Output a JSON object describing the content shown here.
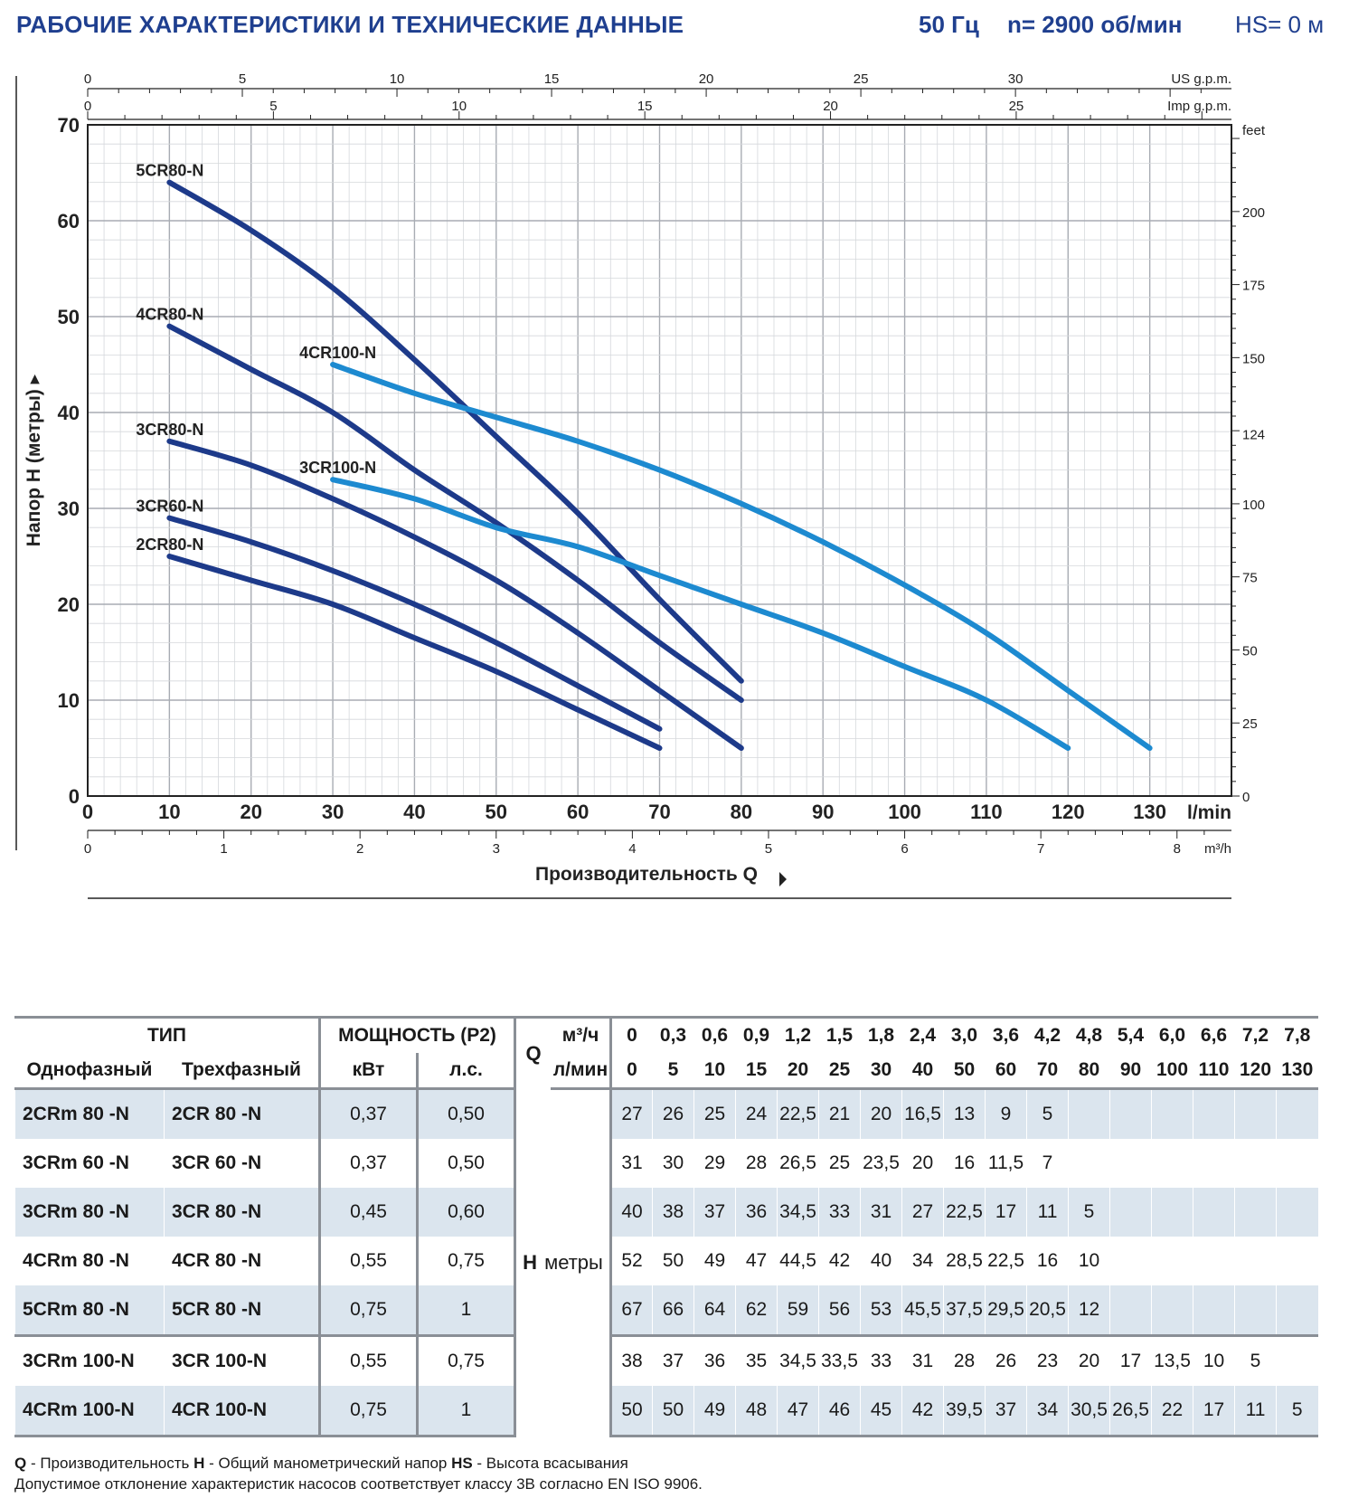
{
  "header": {
    "title": "РАБОЧИЕ ХАРАКТЕРИСТИКИ И ТЕХНИЧЕСКИЕ ДАННЫЕ",
    "freq": "50 Гц",
    "rpm": "n= 2900 об/мин",
    "hs": "HS= 0 м"
  },
  "chart_data": {
    "type": "line",
    "ylabel": "Напор H (метры)",
    "xlabel": "Производительность Q",
    "x_unit": "l/min",
    "x_unit_m3h": "m³/h",
    "x_unit_us": "US g.p.m.",
    "x_unit_imp": "Imp g.p.m.",
    "y2_unit": "feet",
    "xlim": [
      0,
      140
    ],
    "ylim": [
      0,
      70
    ],
    "grid": true,
    "x_ticks": [
      0,
      10,
      20,
      30,
      40,
      50,
      60,
      70,
      80,
      90,
      100,
      110,
      120,
      130
    ],
    "y_ticks": [
      0,
      10,
      20,
      30,
      40,
      50,
      60,
      70
    ],
    "m3h_ticks": [
      0,
      1,
      2,
      3,
      4,
      5,
      6,
      7,
      8
    ],
    "us_gpm_ticks": [
      0,
      5,
      10,
      15,
      20,
      25,
      30
    ],
    "imp_gpm_ticks": [
      0,
      5,
      10,
      15,
      20,
      25
    ],
    "feet_ticks": [
      0,
      25,
      50,
      75,
      100,
      124,
      150,
      175,
      200
    ],
    "series": [
      {
        "name": "2CR80-N",
        "color": "#1d3a8a",
        "x": [
          10,
          20,
          30,
          40,
          50,
          60,
          70
        ],
        "y": [
          25,
          22.5,
          20,
          16.5,
          13,
          9,
          5
        ]
      },
      {
        "name": "3CR60-N",
        "color": "#1d3a8a",
        "x": [
          10,
          20,
          30,
          40,
          50,
          60,
          70
        ],
        "y": [
          29,
          26.5,
          23.5,
          20,
          16,
          11.5,
          7
        ]
      },
      {
        "name": "3CR80-N",
        "color": "#1d3a8a",
        "x": [
          10,
          20,
          30,
          40,
          50,
          60,
          70,
          80
        ],
        "y": [
          37,
          34.5,
          31,
          27,
          22.5,
          17,
          11,
          5
        ]
      },
      {
        "name": "4CR80-N",
        "color": "#1d3a8a",
        "x": [
          10,
          20,
          30,
          40,
          50,
          60,
          70,
          80
        ],
        "y": [
          49,
          44.5,
          40,
          34,
          28.5,
          22.5,
          16,
          10
        ]
      },
      {
        "name": "5CR80-N",
        "color": "#1d3a8a",
        "x": [
          10,
          20,
          30,
          40,
          50,
          60,
          70,
          80
        ],
        "y": [
          64,
          59,
          53,
          45.5,
          37.5,
          29.5,
          20.5,
          12
        ]
      },
      {
        "name": "3CR100-N",
        "color": "#1d8ad0",
        "x": [
          30,
          40,
          50,
          60,
          70,
          80,
          90,
          100,
          110,
          120
        ],
        "y": [
          33,
          31,
          28,
          26,
          23,
          20,
          17,
          13.5,
          10,
          5
        ]
      },
      {
        "name": "4CR100-N",
        "color": "#1d8ad0",
        "x": [
          30,
          40,
          50,
          60,
          70,
          80,
          90,
          100,
          110,
          120,
          130
        ],
        "y": [
          45,
          42,
          39.5,
          37,
          34,
          30.5,
          26.5,
          22,
          17,
          11,
          5
        ]
      }
    ]
  },
  "table": {
    "tip": "ТИП",
    "single_phase": "Однофазный",
    "three_phase": "Трехфазный",
    "power": "МОЩНОСТЬ (P2)",
    "kw": "кВт",
    "hp": "л.с.",
    "q_label": "Q",
    "q_m3h_unit": "м³/ч",
    "q_lmin_unit": "л/мин",
    "h_label": "H",
    "h_unit": "метры",
    "q_m3h": [
      "0",
      "0,3",
      "0,6",
      "0,9",
      "1,2",
      "1,5",
      "1,8",
      "2,4",
      "3,0",
      "3,6",
      "4,2",
      "4,8",
      "5,4",
      "6,0",
      "6,6",
      "7,2",
      "7,8"
    ],
    "q_lmin": [
      "0",
      "5",
      "10",
      "15",
      "20",
      "25",
      "30",
      "40",
      "50",
      "60",
      "70",
      "80",
      "90",
      "100",
      "110",
      "120",
      "130"
    ],
    "rows": [
      {
        "single": "2CRm 80 -N",
        "three": "2CR 80 -N",
        "kw": "0,37",
        "hp": "0,50",
        "h": [
          "27",
          "26",
          "25",
          "24",
          "22,5",
          "21",
          "20",
          "16,5",
          "13",
          "9",
          "5",
          "",
          "",
          "",
          "",
          "",
          ""
        ]
      },
      {
        "single": "3CRm 60 -N",
        "three": "3CR 60 -N",
        "kw": "0,37",
        "hp": "0,50",
        "h": [
          "31",
          "30",
          "29",
          "28",
          "26,5",
          "25",
          "23,5",
          "20",
          "16",
          "11,5",
          "7",
          "",
          "",
          "",
          "",
          "",
          ""
        ]
      },
      {
        "single": "3CRm 80 -N",
        "three": "3CR 80 -N",
        "kw": "0,45",
        "hp": "0,60",
        "h": [
          "40",
          "38",
          "37",
          "36",
          "34,5",
          "33",
          "31",
          "27",
          "22,5",
          "17",
          "11",
          "5",
          "",
          "",
          "",
          "",
          ""
        ]
      },
      {
        "single": "4CRm 80 -N",
        "three": "4CR 80 -N",
        "kw": "0,55",
        "hp": "0,75",
        "h": [
          "52",
          "50",
          "49",
          "47",
          "44,5",
          "42",
          "40",
          "34",
          "28,5",
          "22,5",
          "16",
          "10",
          "",
          "",
          "",
          "",
          ""
        ]
      },
      {
        "single": "5CRm 80 -N",
        "three": "5CR 80 -N",
        "kw": "0,75",
        "hp": "1",
        "h": [
          "67",
          "66",
          "64",
          "62",
          "59",
          "56",
          "53",
          "45,5",
          "37,5",
          "29,5",
          "20,5",
          "12",
          "",
          "",
          "",
          "",
          ""
        ]
      },
      {
        "single": "3CRm 100-N",
        "three": "3CR 100-N",
        "kw": "0,55",
        "hp": "0,75",
        "h": [
          "38",
          "37",
          "36",
          "35",
          "34,5",
          "33,5",
          "33",
          "31",
          "28",
          "26",
          "23",
          "20",
          "17",
          "13,5",
          "10",
          "5",
          ""
        ]
      },
      {
        "single": "4CRm 100-N",
        "three": "4CR 100-N",
        "kw": "0,75",
        "hp": "1",
        "h": [
          "50",
          "50",
          "49",
          "48",
          "47",
          "46",
          "45",
          "42",
          "39,5",
          "37",
          "34",
          "30,5",
          "26,5",
          "22",
          "17",
          "11",
          "5"
        ]
      }
    ]
  },
  "notes": {
    "q_key": "Q",
    "q_text": " - Производительность  ",
    "h_key": "H",
    "h_text": " - Общий манометрический напор  ",
    "hs_key": "HS",
    "hs_text": " - Высота всасывания",
    "line2": "Допустимое отклонение характеристик насосов соответствует классу 3B согласно EN ISO 9906."
  }
}
